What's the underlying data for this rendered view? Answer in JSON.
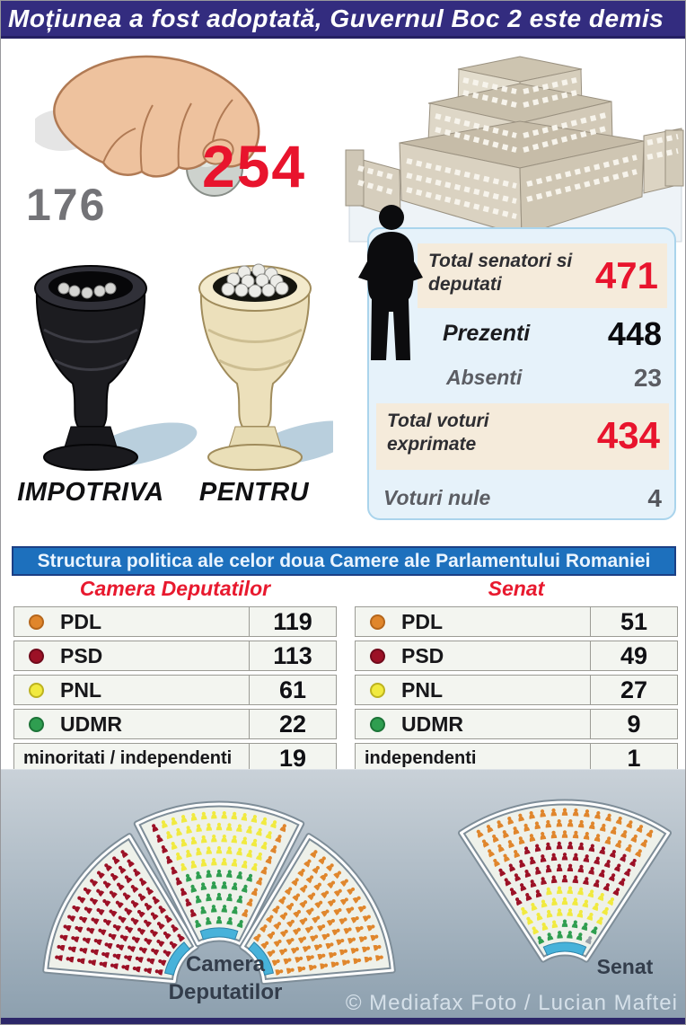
{
  "title_bar": {
    "text": "Moțiunea a fost adoptată, Guvernul Boc 2 este demis"
  },
  "vote": {
    "for_count": "254",
    "against_count": "176",
    "for_label": "PENTRU",
    "against_label": "IMPOTRIVA"
  },
  "stats": {
    "rows": [
      {
        "label": "Total senatori si deputati",
        "value": "471"
      },
      {
        "label": "Prezenti",
        "value": "448"
      },
      {
        "label": "Absenti",
        "value": "23"
      },
      {
        "label": "Total voturi exprimate",
        "value": "434"
      },
      {
        "label": "Voturi nule",
        "value": "4"
      }
    ]
  },
  "section_banner": {
    "text": "Structura politica ale celor doua Camere ale Parlamentului Romaniei"
  },
  "chart_data": [
    {
      "type": "table",
      "title": "Camera Deputatilor",
      "rows": [
        [
          "PDL",
          119
        ],
        [
          "PSD",
          113
        ],
        [
          "PNL",
          61
        ],
        [
          "UDMR",
          22
        ],
        [
          "minoritati / independenti",
          19
        ]
      ]
    },
    {
      "type": "table",
      "title": "Senat",
      "rows": [
        [
          "PDL",
          51
        ],
        [
          "PSD",
          49
        ],
        [
          "PNL",
          27
        ],
        [
          "UDMR",
          9
        ],
        [
          "independenti",
          1
        ]
      ]
    }
  ],
  "parties": {
    "PDL": "#e0862c",
    "PSD": "#9c1126",
    "PNL": "#f1ea3f",
    "UDMR": "#2f9e50"
  },
  "party_rings": {
    "PDL": "#b5661c",
    "PSD": "#700b1c",
    "PNL": "#bdb320",
    "UDMR": "#1d7438"
  },
  "colors": {
    "independent_seat": "#97a0a8",
    "accent_red": "#e8142d",
    "banner_blue": "#1d70bd",
    "title_navy": "#332c7f",
    "hemicycle_arc": "#47b2da"
  },
  "hemicycles": {
    "camera_label": "Camera Deputatilor",
    "senat_label": "Senat"
  },
  "credit": "© Mediafax Foto / Lucian Maftei"
}
